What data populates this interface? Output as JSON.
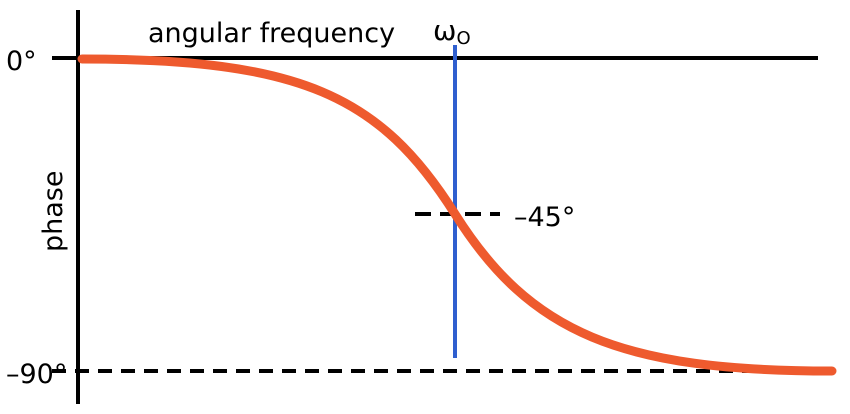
{
  "diagram": {
    "x_axis_label": "angular frequency",
    "y_axis_label": "phase",
    "marker_symbol": "ω",
    "marker_subscript": "O",
    "tick_top": "0°",
    "tick_bottom": "–90°",
    "annotation": "–45°"
  },
  "colors": {
    "curve": "#ee5a2e",
    "marker_line": "#2f5fcf",
    "axes": "#000000"
  }
}
